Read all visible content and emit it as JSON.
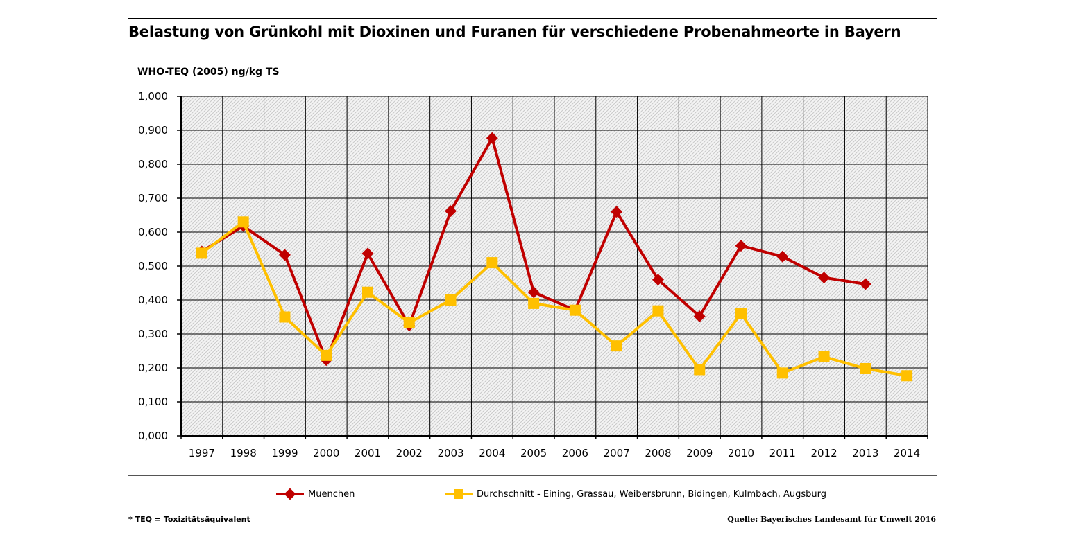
{
  "title": "Belastung von Grünkohl mit Dioxinen und Furanen für verschiedene Probenahmeorte in Bayern",
  "footnote": "* TEQ = Toxizitätsäquivalent",
  "source": "Quelle: Bayerisches Landesamt für Umwelt 2016",
  "colors": {
    "muenchen": "#c00000",
    "durchschnitt": "#ffc000",
    "grid": "#000000",
    "hatch": "#d0d0d0"
  },
  "chart_data": {
    "type": "line",
    "title": "Belastung von Grünkohl mit Dioxinen und Furanen für verschiedene Probenahmeorte in Bayern",
    "ylabel": "WHO-TEQ (2005) ng/kg TS",
    "xlabel": "",
    "ylim": [
      0,
      1.0
    ],
    "yticks": [
      "0,000",
      "0,100",
      "0,200",
      "0,300",
      "0,400",
      "0,500",
      "0,600",
      "0,700",
      "0,800",
      "0,900",
      "1,000"
    ],
    "categories": [
      "1997",
      "1998",
      "1999",
      "2000",
      "2001",
      "2002",
      "2003",
      "2004",
      "2005",
      "2006",
      "2007",
      "2008",
      "2009",
      "2010",
      "2011",
      "2012",
      "2013",
      "2014"
    ],
    "legend_position": "bottom",
    "series": [
      {
        "name": "Muenchen",
        "marker": "diamond",
        "values": [
          0.543,
          0.618,
          0.533,
          0.223,
          0.537,
          0.325,
          0.662,
          0.877,
          0.423,
          0.37,
          0.66,
          0.46,
          0.352,
          0.56,
          0.528,
          0.466,
          0.447,
          null
        ]
      },
      {
        "name": "Durchschnitt - Eining, Grassau, Weibersbrunn, Bidingen, Kulmbach, Augsburg",
        "marker": "square",
        "values": [
          0.538,
          0.63,
          0.35,
          0.237,
          0.423,
          0.333,
          0.4,
          0.51,
          0.39,
          0.37,
          0.265,
          0.368,
          0.195,
          0.36,
          0.185,
          0.233,
          0.198,
          0.177
        ]
      }
    ]
  }
}
